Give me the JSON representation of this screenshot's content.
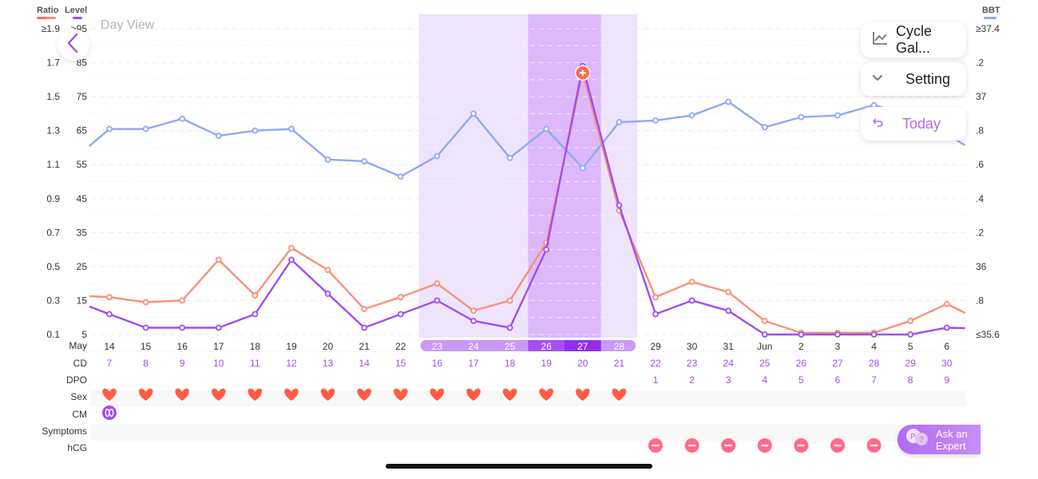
{
  "header": {
    "title": "Day View",
    "ratio_label": "Ratio",
    "level_label": "Level",
    "bbt_label": "BBT"
  },
  "colors": {
    "ratio": "#f8907a",
    "level": "#a04df0",
    "bbt": "#8ea8f8",
    "fertile_light": "#efe4fd",
    "fertile_dark": "#ddb8fb",
    "heart": "#ff5c45",
    "hcg": "#ff6b8a",
    "accent": "#b06cf2"
  },
  "buttons": {
    "cycle_gallery": "Cycle Gal...",
    "setting": "Setting",
    "today": "Today",
    "ask_expert_line1": "Ask an",
    "ask_expert_line2": "Expert"
  },
  "icons": {
    "back": "chevron-left-icon",
    "cycle_gallery": "line-chart-icon",
    "setting": "chevron-down-icon",
    "today": "return-arrow-icon",
    "ask_expert": "chat-bubbles-icon",
    "sex": "heart-icon",
    "cm": "eggwhite-icon",
    "hcg": "negative-minus-icon"
  },
  "left_axis": {
    "ratio_ticks": [
      "≥1.9",
      "1.7",
      "1.5",
      "1.3",
      "1.1",
      "0.9",
      "0.7",
      "0.5",
      "0.3",
      "0.1"
    ],
    "level_ticks": [
      ">95",
      "85",
      "75",
      "65",
      "55",
      "45",
      "35",
      "25",
      "15",
      "5"
    ]
  },
  "right_axis": {
    "ticks": [
      "≥37.4",
      ".2",
      "37",
      ".8",
      ".6",
      ".4",
      ".2",
      "36",
      ".8",
      "≤35.6"
    ]
  },
  "row_labels": {
    "month": "May",
    "cd": "CD",
    "dpo": "DPO",
    "sex": "Sex",
    "cm": "CM",
    "symptoms": "Symptoms",
    "hcg": "hCG"
  },
  "days": [
    "14",
    "15",
    "16",
    "17",
    "18",
    "19",
    "20",
    "21",
    "22",
    "23",
    "24",
    "25",
    "26",
    "27",
    "28",
    "29",
    "30",
    "31",
    "Jun",
    "2",
    "3",
    "4",
    "5",
    "6"
  ],
  "cd": [
    "7",
    "8",
    "9",
    "10",
    "11",
    "12",
    "13",
    "14",
    "15",
    "16",
    "17",
    "18",
    "19",
    "20",
    "21",
    "22",
    "23",
    "24",
    "25",
    "26",
    "27",
    "28",
    "29",
    "30"
  ],
  "dpo": [
    "",
    "",
    "",
    "",
    "",
    "",
    "",
    "",
    "",
    "",
    "",
    "",
    "",
    "",
    "",
    "1",
    "2",
    "3",
    "4",
    "5",
    "6",
    "7",
    "8",
    "9"
  ],
  "sex": [
    1,
    1,
    1,
    1,
    1,
    1,
    1,
    1,
    1,
    1,
    1,
    1,
    1,
    1,
    1,
    0,
    0,
    0,
    0,
    0,
    0,
    0,
    0,
    0
  ],
  "cm": [
    1,
    0,
    0,
    0,
    0,
    0,
    0,
    0,
    0,
    0,
    0,
    0,
    0,
    0,
    0,
    0,
    0,
    0,
    0,
    0,
    0,
    0,
    0,
    0
  ],
  "hcg": [
    0,
    0,
    0,
    0,
    0,
    0,
    0,
    0,
    0,
    0,
    0,
    0,
    0,
    0,
    0,
    1,
    1,
    1,
    1,
    1,
    1,
    1,
    1,
    0
  ],
  "fertile": {
    "light_days": [
      "23",
      "24",
      "25",
      "26",
      "27",
      "28"
    ],
    "dark_days": [
      "26",
      "27"
    ],
    "peak_day": "27"
  },
  "chart_data": {
    "type": "line",
    "x": [
      "May 14",
      "May 15",
      "May 16",
      "May 17",
      "May 18",
      "May 19",
      "May 20",
      "May 21",
      "May 22",
      "May 23",
      "May 24",
      "May 25",
      "May 26",
      "May 27",
      "May 28",
      "May 29",
      "May 30",
      "May 31",
      "Jun 1",
      "Jun 2",
      "Jun 3",
      "Jun 4",
      "Jun 5",
      "Jun 6"
    ],
    "series": [
      {
        "name": "Ratio",
        "axis": "left-ratio",
        "values": [
          0.32,
          0.29,
          0.3,
          0.54,
          0.33,
          0.61,
          0.48,
          0.25,
          0.32,
          0.4,
          0.24,
          0.3,
          0.64,
          1.64,
          0.83,
          0.32,
          0.41,
          0.35,
          0.18,
          0.11,
          0.11,
          0.11,
          0.18,
          0.28
        ]
      },
      {
        "name": "Level",
        "axis": "left-level",
        "values": [
          11,
          7,
          7,
          7,
          11,
          27,
          17,
          7,
          11,
          15,
          9,
          7,
          30,
          84,
          43,
          11,
          15,
          12,
          5,
          5,
          5,
          5,
          5,
          7
        ]
      },
      {
        "name": "BBT",
        "axis": "right",
        "values": [
          36.81,
          36.81,
          36.87,
          36.77,
          36.8,
          36.81,
          36.63,
          36.62,
          36.53,
          36.65,
          36.9,
          36.64,
          36.81,
          36.58,
          36.85,
          36.86,
          36.89,
          36.97,
          36.82,
          36.88,
          36.89,
          36.95,
          36.89,
          36.78
        ]
      }
    ],
    "ratio_range": [
      0.1,
      1.9
    ],
    "level_range": [
      5,
      95
    ],
    "bbt_range": [
      35.6,
      37.4
    ],
    "grid": "dashed"
  }
}
